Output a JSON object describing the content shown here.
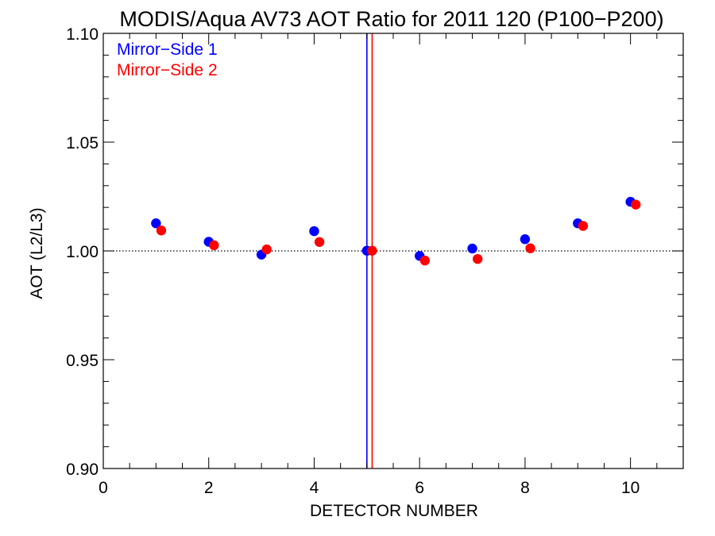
{
  "chart_data": {
    "type": "scatter",
    "title": "MODIS/Aqua AV73 AOT Ratio for 2011 120 (P100−P200)",
    "xlabel": "DETECTOR NUMBER",
    "ylabel": "AOT (L2/L3)",
    "xlim": [
      0,
      11
    ],
    "ylim": [
      0.9,
      1.1
    ],
    "x_ticks": [
      0,
      2,
      4,
      6,
      8,
      10
    ],
    "x_tick_labels": [
      "0",
      "2",
      "4",
      "6",
      "8",
      "10"
    ],
    "y_ticks": [
      0.9,
      0.95,
      1.0,
      1.05,
      1.1
    ],
    "y_tick_labels": [
      "0.90",
      "0.95",
      "1.00",
      "1.05",
      "1.10"
    ],
    "reference_line": {
      "y": 1.0,
      "style": "dotted"
    },
    "vertical_lines": [
      {
        "x": 5.0,
        "color": "#0000ff"
      },
      {
        "x": 5.1,
        "color": "#ff0000"
      }
    ],
    "legend_position": "top-left",
    "series": [
      {
        "name": "Mirror−Side 1",
        "color": "#0000ff",
        "x": [
          1,
          2,
          3,
          4,
          5,
          6,
          7,
          8,
          9,
          10
        ],
        "y": [
          1.0127,
          1.0042,
          0.9983,
          1.0091,
          1.0001,
          0.9977,
          1.0011,
          1.0054,
          1.0127,
          1.0226
        ]
      },
      {
        "name": "Mirror−Side 2",
        "color": "#ff0000",
        "x": [
          1.1,
          2.1,
          3.1,
          4.1,
          5.1,
          6.1,
          7.1,
          8.1,
          9.1,
          10.1
        ],
        "y": [
          1.0094,
          1.0026,
          1.0007,
          1.0041,
          1.0001,
          0.9956,
          0.9963,
          1.0012,
          1.0115,
          1.0213
        ]
      }
    ]
  }
}
